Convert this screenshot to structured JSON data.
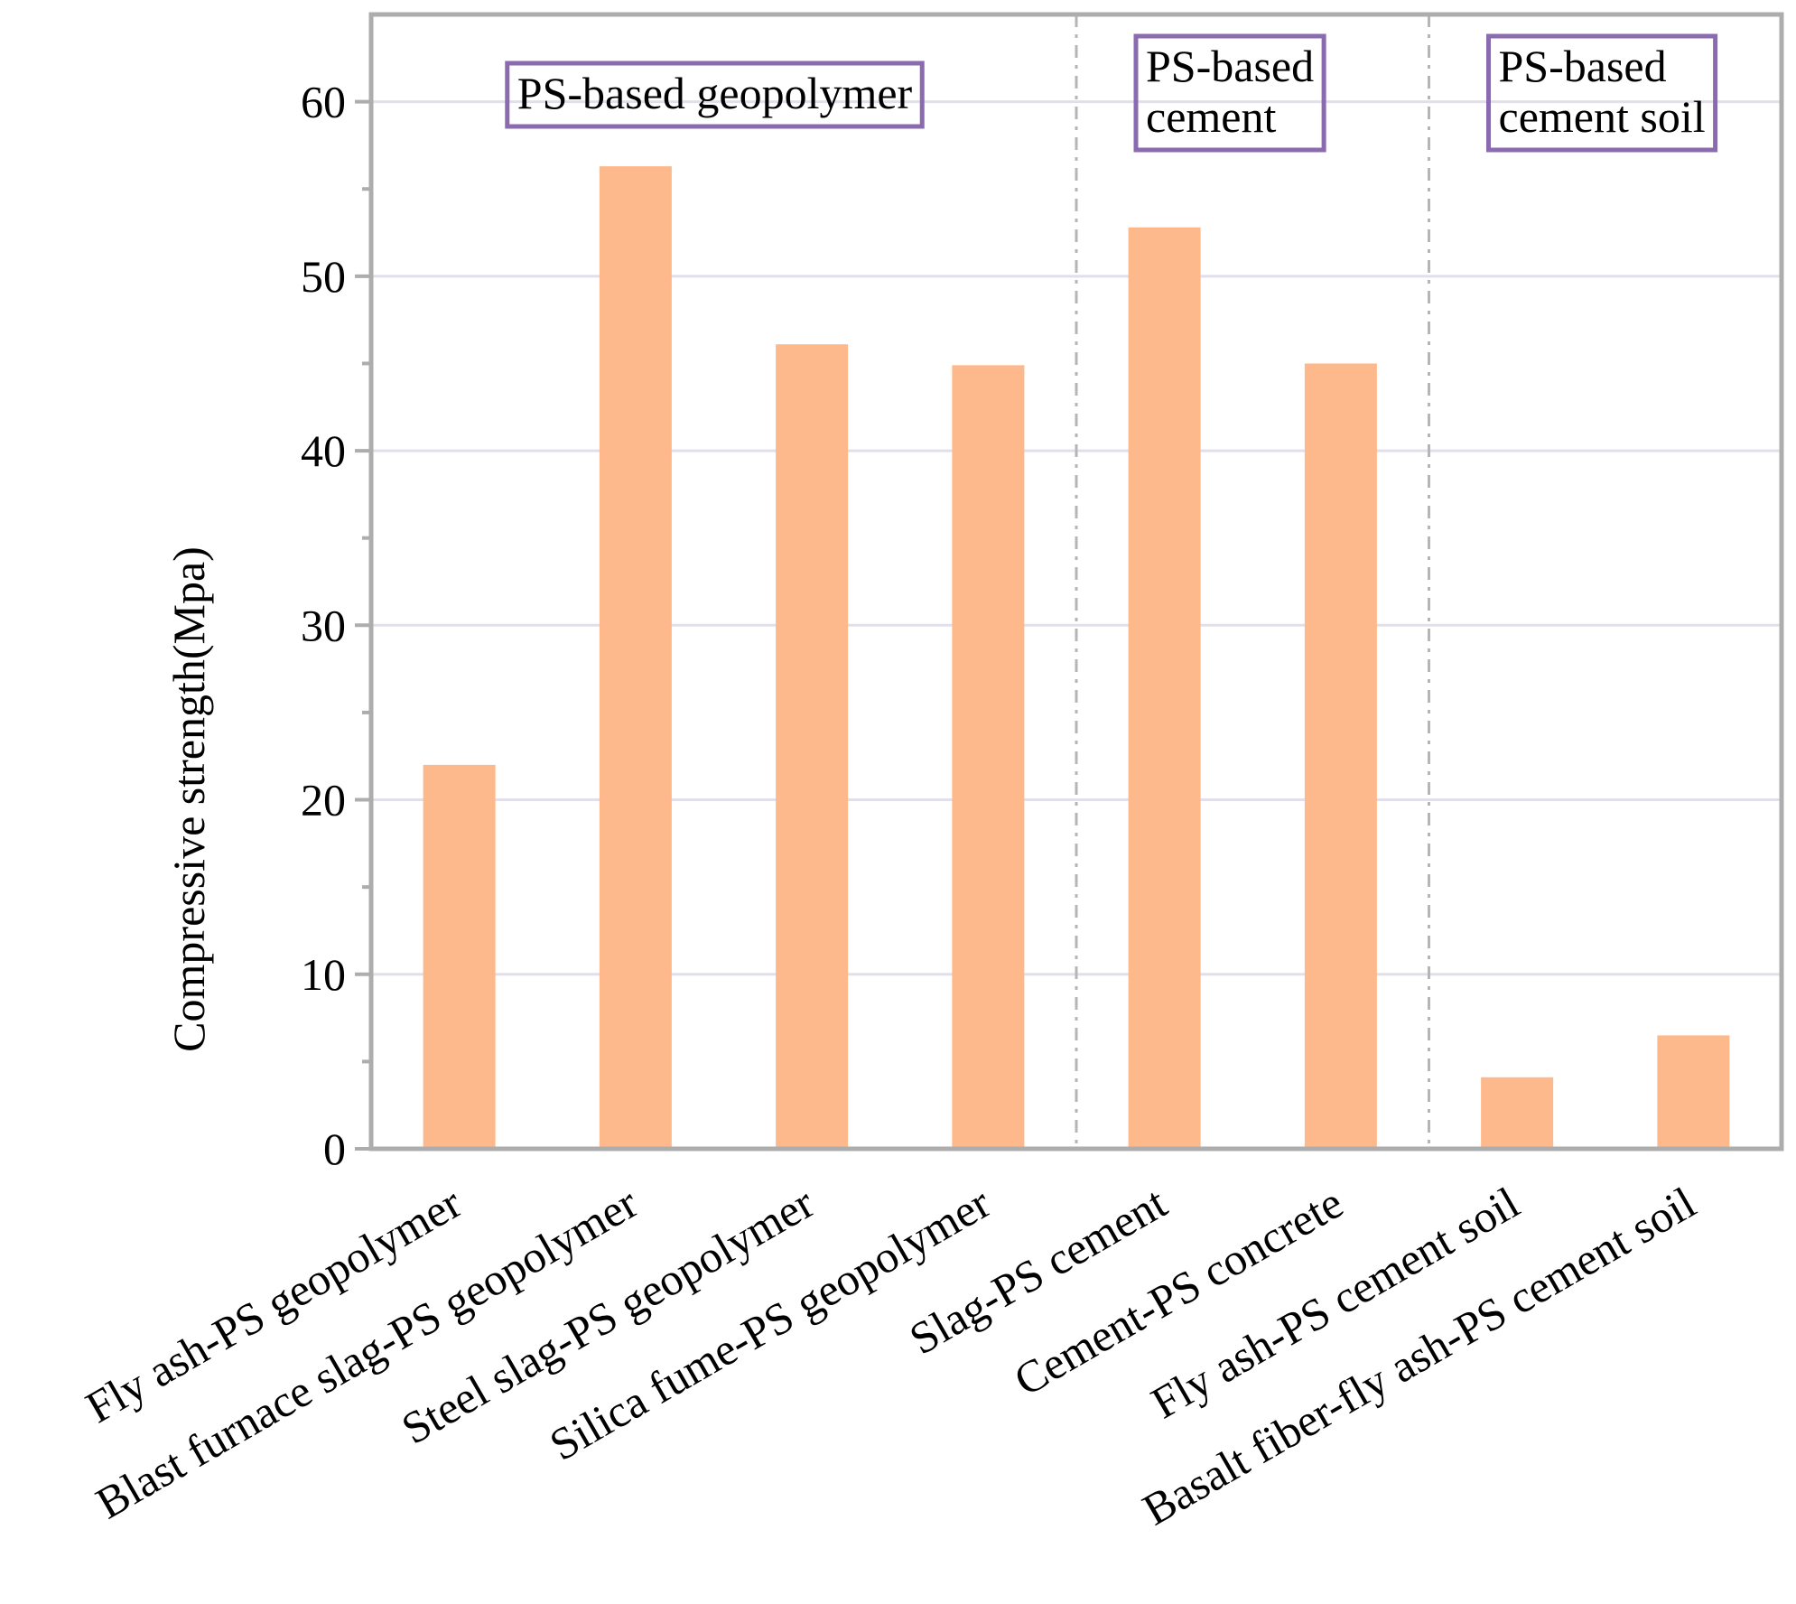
{
  "chart_data": {
    "type": "bar",
    "title": "",
    "xlabel": "",
    "ylabel": "Compressive strength(Mpa)",
    "ylim": [
      0,
      65
    ],
    "yticks": [
      0,
      10,
      20,
      30,
      40,
      50,
      60
    ],
    "ytick_labels": [
      "0",
      "10",
      "20",
      "30",
      "40",
      "50",
      "60"
    ],
    "grid": true,
    "categories": [
      "Fly ash-PS geopolymer",
      "Blast furnace slag-PS geopolymer",
      "Steel slag-PS geopolymer",
      "Silica fume-PS geopolymer",
      "Slag-PS cement",
      "Cement-PS concrete",
      "Fly ash-PS cement soil",
      "Basalt fiber-fly ash-PS cement soil"
    ],
    "values": [
      22.0,
      56.3,
      46.1,
      44.9,
      52.8,
      45.0,
      4.1,
      6.5
    ],
    "groups": [
      {
        "lines": [
          "PS-based geopolymer"
        ],
        "start": 0,
        "end": 3
      },
      {
        "lines": [
          "PS-based",
          "cement"
        ],
        "start": 4,
        "end": 5
      },
      {
        "lines": [
          "PS-based",
          "cement soil"
        ],
        "start": 6,
        "end": 7
      }
    ],
    "group_separators_after": [
      3,
      5
    ]
  },
  "colors": {
    "bar": "#FDB98B",
    "grid": "#E3DEEB",
    "axis": "#ADADAD",
    "group_box": "#8A6BB0",
    "separator": "#B5B5B5",
    "text": "#000000"
  }
}
